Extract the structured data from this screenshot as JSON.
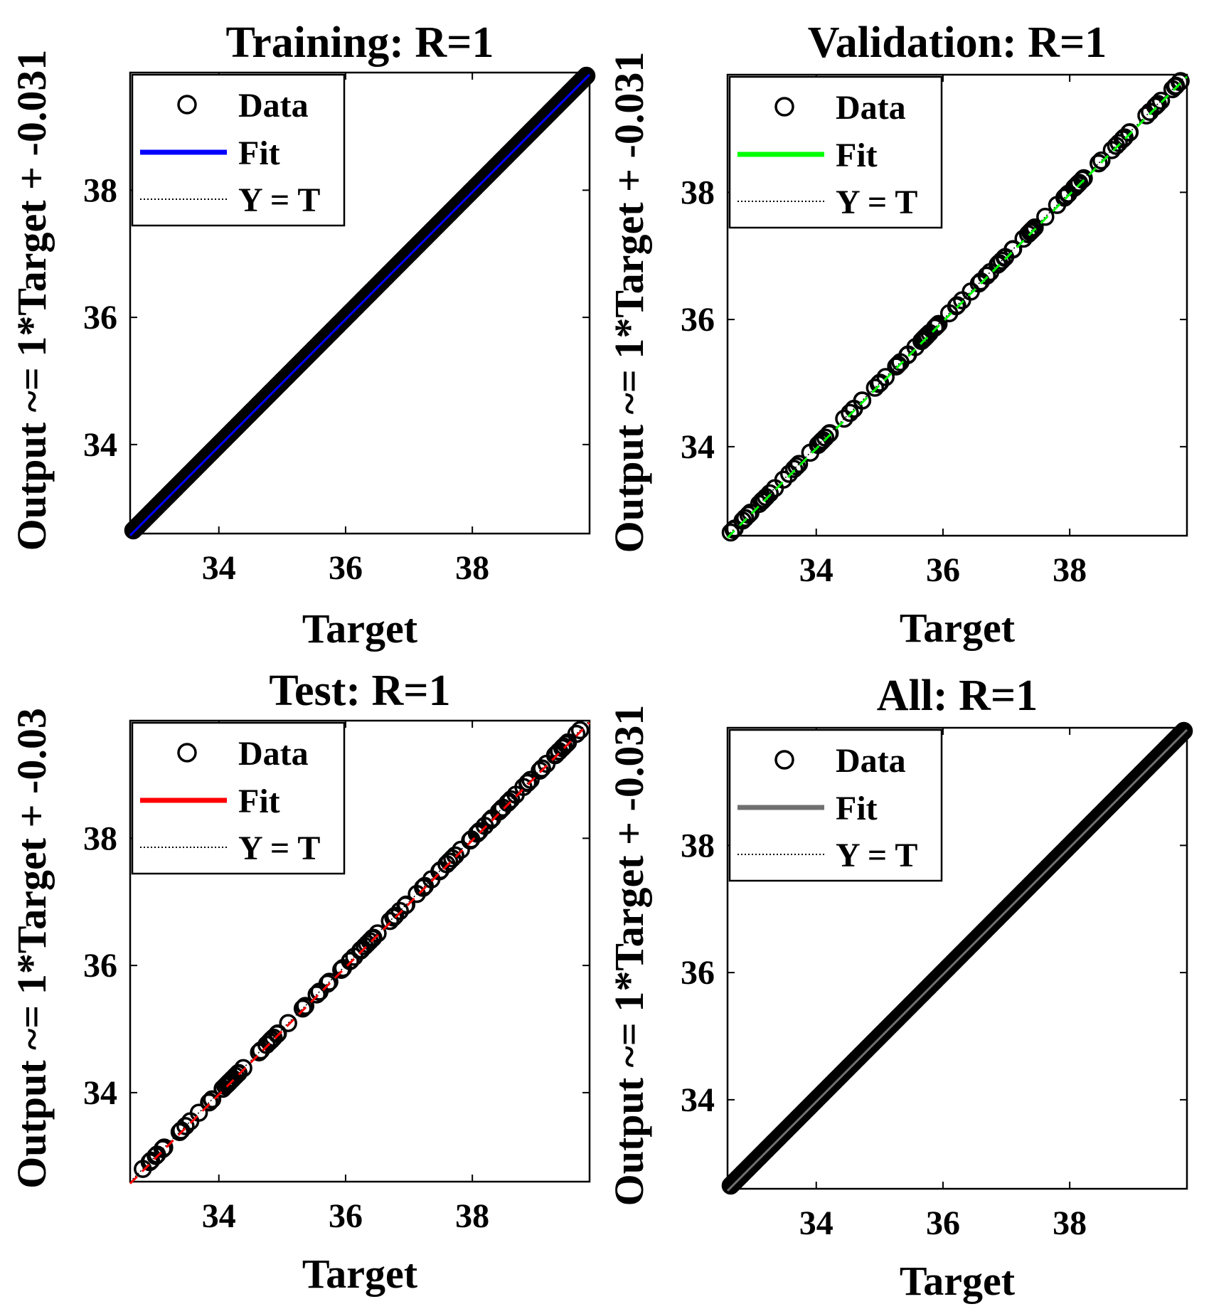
{
  "chart_data": [
    {
      "type": "scatter",
      "title": "Training: R=1",
      "xlabel": "Target",
      "ylabel": "Output ~= 1*Target + -0.031",
      "xlim": [
        32.6,
        39.85
      ],
      "ylim": [
        32.6,
        39.85
      ],
      "xticks": [
        34,
        36,
        38
      ],
      "yticks": [
        34,
        36,
        38
      ],
      "fit_color": "#0000ff",
      "fit": {
        "slope": 1,
        "intercept": -0.031
      },
      "density": "dense",
      "data_range": [
        32.65,
        39.8
      ],
      "legend": {
        "position": "top-left",
        "entries": [
          "Data",
          "Fit",
          "Y = T"
        ]
      }
    },
    {
      "type": "scatter",
      "title": "Validation: R=1",
      "xlabel": "Target",
      "ylabel": "Output ~= 1*Target + -0.031",
      "xlim": [
        32.6,
        39.85
      ],
      "ylim": [
        32.6,
        39.85
      ],
      "xticks": [
        34,
        36,
        38
      ],
      "yticks": [
        34,
        36,
        38
      ],
      "fit_color": "#00ff00",
      "fit": {
        "slope": 1,
        "intercept": -0.031
      },
      "density": "sparse",
      "data_range": [
        32.65,
        39.75
      ],
      "legend": {
        "position": "top-left",
        "entries": [
          "Data",
          "Fit",
          "Y = T"
        ]
      }
    },
    {
      "type": "scatter",
      "title": "Test: R=1",
      "xlabel": "Target",
      "ylabel": "Output ~= 1*Target + -0.03",
      "xlim": [
        32.6,
        39.85
      ],
      "ylim": [
        32.6,
        39.85
      ],
      "xticks": [
        34,
        36,
        38
      ],
      "yticks": [
        34,
        36,
        38
      ],
      "fit_color": "#ff0000",
      "fit": {
        "slope": 1,
        "intercept": -0.03
      },
      "density": "sparse",
      "data_range": [
        32.8,
        39.7
      ],
      "legend": {
        "position": "top-left",
        "entries": [
          "Data",
          "Fit",
          "Y = T"
        ]
      }
    },
    {
      "type": "scatter",
      "title": "All: R=1",
      "xlabel": "Target",
      "ylabel": "Output ~= 1*Target + -0.031",
      "xlim": [
        32.6,
        39.85
      ],
      "ylim": [
        32.6,
        39.85
      ],
      "xticks": [
        34,
        36,
        38
      ],
      "yticks": [
        34,
        36,
        38
      ],
      "fit_color": "#707070",
      "fit": {
        "slope": 1,
        "intercept": -0.031
      },
      "density": "dense",
      "data_range": [
        32.65,
        39.8
      ],
      "legend": {
        "position": "top-left",
        "entries": [
          "Data",
          "Fit",
          "Y = T"
        ]
      }
    }
  ]
}
